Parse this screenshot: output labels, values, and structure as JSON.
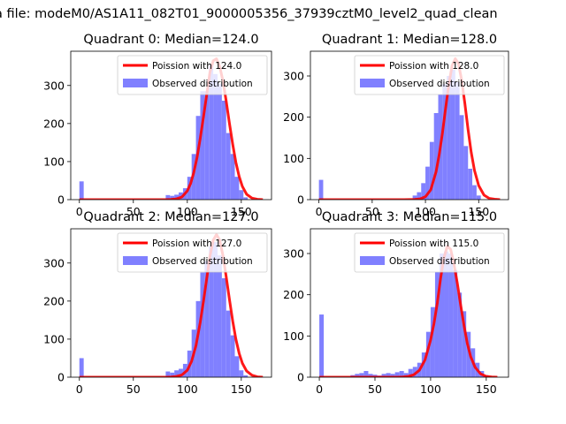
{
  "figure": {
    "title": "a file: modeM0/AS1A11_082T01_9000005356_37939cztM0_level2_quad_clean"
  },
  "colors": {
    "fit_line": "#ff0000",
    "histogram": "#8080ff",
    "axes": "#000000",
    "background": "#ffffff"
  },
  "chart_data": [
    {
      "type": "bar",
      "title": "Quadrant 0: Median=124.0",
      "xlim": [
        -8,
        178
      ],
      "ylim": [
        0,
        390
      ],
      "xticks": [
        0,
        50,
        100,
        150
      ],
      "yticks": [
        0,
        100,
        200,
        300
      ],
      "legend_position": "top-right",
      "grid": false,
      "series": [
        {
          "name": "Poission with 124.0",
          "type": "line",
          "x": [
            0,
            10,
            20,
            30,
            40,
            50,
            60,
            70,
            80,
            85,
            90,
            95,
            100,
            103,
            106,
            109,
            112,
            115,
            118,
            121,
            124,
            127,
            130,
            133,
            136,
            139,
            142,
            145,
            148,
            151,
            155,
            160,
            165,
            170
          ],
          "y": [
            0,
            0,
            0,
            0,
            0,
            0,
            0,
            0,
            0,
            0.5,
            2,
            7,
            23,
            42,
            71,
            111,
            162,
            218,
            277,
            335,
            365,
            370,
            350,
            312,
            260,
            201,
            146,
            98,
            61,
            35,
            14,
            4,
            1,
            0
          ]
        },
        {
          "name": "Observed distribution",
          "type": "hist",
          "bin_width": 4,
          "x": [
            0,
            4,
            8,
            12,
            16,
            20,
            24,
            28,
            32,
            36,
            40,
            44,
            48,
            52,
            56,
            60,
            64,
            68,
            72,
            76,
            80,
            84,
            88,
            92,
            96,
            100,
            104,
            108,
            112,
            116,
            120,
            124,
            128,
            132,
            136,
            140,
            144,
            148,
            152,
            156,
            160,
            164,
            168
          ],
          "y": [
            48,
            0,
            0,
            0,
            0,
            0,
            0,
            0,
            0,
            0,
            0,
            0,
            0,
            0,
            0,
            0,
            0,
            0,
            0,
            0,
            12,
            10,
            13,
            19,
            30,
            60,
            120,
            220,
            285,
            285,
            355,
            330,
            305,
            260,
            175,
            120,
            60,
            25,
            6,
            0,
            0,
            0,
            0
          ]
        }
      ]
    },
    {
      "type": "bar",
      "title": "Quadrant 1: Median=128.0",
      "xlim": [
        -8,
        178
      ],
      "ylim": [
        0,
        360
      ],
      "xticks": [
        0,
        50,
        100,
        150
      ],
      "yticks": [
        0,
        100,
        200,
        300
      ],
      "legend_position": "top-right",
      "grid": false,
      "series": [
        {
          "name": "Poission with 128.0",
          "type": "line",
          "x": [
            0,
            10,
            20,
            30,
            40,
            50,
            60,
            70,
            80,
            90,
            95,
            100,
            105,
            110,
            113,
            116,
            119,
            122,
            125,
            128,
            131,
            134,
            137,
            140,
            143,
            146,
            150,
            155,
            160,
            165,
            170
          ],
          "y": [
            0,
            0,
            0,
            0,
            0,
            0,
            0,
            0,
            0,
            0.5,
            2,
            7,
            24,
            68,
            110,
            162,
            222,
            281,
            325,
            342,
            330,
            290,
            234,
            171,
            115,
            71,
            34,
            11,
            3,
            1,
            0
          ]
        },
        {
          "name": "Observed distribution",
          "type": "hist",
          "bin_width": 4,
          "x": [
            0,
            4,
            8,
            12,
            16,
            20,
            24,
            28,
            32,
            36,
            40,
            44,
            48,
            52,
            56,
            60,
            64,
            68,
            72,
            76,
            80,
            84,
            88,
            92,
            96,
            100,
            104,
            108,
            112,
            116,
            120,
            124,
            128,
            132,
            136,
            140,
            144,
            148,
            152,
            156,
            160,
            164,
            168
          ],
          "y": [
            48,
            0,
            0,
            0,
            0,
            0,
            0,
            0,
            0,
            0,
            0,
            0,
            0,
            0,
            0,
            0,
            0,
            0,
            0,
            0,
            0,
            0,
            10,
            18,
            40,
            80,
            140,
            210,
            255,
            280,
            300,
            315,
            285,
            205,
            130,
            75,
            35,
            10,
            0,
            0,
            0,
            0,
            0
          ]
        }
      ]
    },
    {
      "type": "bar",
      "title": "Quadrant 2: Median=127.0",
      "xlim": [
        -8,
        178
      ],
      "ylim": [
        0,
        390
      ],
      "xticks": [
        0,
        50,
        100,
        150
      ],
      "yticks": [
        0,
        100,
        200,
        300
      ],
      "legend_position": "top-right",
      "grid": false,
      "series": [
        {
          "name": "Poission with 127.0",
          "type": "line",
          "x": [
            0,
            10,
            20,
            30,
            40,
            50,
            60,
            70,
            80,
            85,
            90,
            95,
            100,
            104,
            108,
            112,
            115,
            118,
            121,
            124,
            127,
            130,
            133,
            136,
            139,
            142,
            145,
            148,
            151,
            155,
            160,
            165,
            170
          ],
          "y": [
            0,
            0,
            0,
            0,
            0,
            0,
            0,
            0,
            0,
            0.5,
            2,
            6,
            18,
            42,
            83,
            145,
            200,
            260,
            318,
            360,
            375,
            360,
            320,
            265,
            205,
            148,
            100,
            63,
            37,
            16,
            5,
            1,
            0
          ]
        },
        {
          "name": "Observed distribution",
          "type": "hist",
          "bin_width": 4,
          "x": [
            0,
            4,
            8,
            12,
            16,
            20,
            24,
            28,
            32,
            36,
            40,
            44,
            48,
            52,
            56,
            60,
            64,
            68,
            72,
            76,
            80,
            84,
            88,
            92,
            96,
            100,
            104,
            108,
            112,
            116,
            120,
            124,
            128,
            132,
            136,
            140,
            144,
            148,
            152,
            156,
            160,
            164,
            168
          ],
          "y": [
            50,
            0,
            0,
            0,
            0,
            0,
            0,
            0,
            0,
            0,
            0,
            0,
            0,
            0,
            0,
            0,
            0,
            0,
            0,
            0,
            15,
            12,
            18,
            22,
            35,
            70,
            125,
            200,
            275,
            305,
            345,
            355,
            320,
            260,
            175,
            110,
            55,
            18,
            5,
            0,
            0,
            0,
            0
          ]
        }
      ]
    },
    {
      "type": "bar",
      "title": "Quadrant 3: Median=115.0",
      "xlim": [
        -8,
        170
      ],
      "ylim": [
        0,
        360
      ],
      "xticks": [
        0,
        50,
        100,
        150
      ],
      "yticks": [
        0,
        100,
        200,
        300
      ],
      "legend_position": "top-right",
      "grid": false,
      "series": [
        {
          "name": "Poission with 115.0",
          "type": "line",
          "x": [
            0,
            10,
            20,
            30,
            40,
            50,
            60,
            70,
            75,
            80,
            85,
            90,
            95,
            100,
            103,
            106,
            109,
            112,
            115,
            118,
            121,
            124,
            127,
            130,
            133,
            136,
            140,
            145,
            150,
            155,
            160
          ],
          "y": [
            0,
            0,
            0,
            0,
            0,
            0,
            0,
            0,
            0.5,
            2,
            6,
            17,
            42,
            90,
            130,
            180,
            240,
            290,
            318,
            310,
            275,
            228,
            175,
            125,
            82,
            50,
            24,
            8,
            2,
            0.5,
            0
          ]
        },
        {
          "name": "Observed distribution",
          "type": "hist",
          "bin_width": 4,
          "x": [
            0,
            4,
            8,
            12,
            16,
            20,
            24,
            28,
            32,
            36,
            40,
            44,
            48,
            52,
            56,
            60,
            64,
            68,
            72,
            76,
            80,
            84,
            88,
            92,
            96,
            100,
            104,
            108,
            112,
            116,
            120,
            124,
            128,
            132,
            136,
            140,
            144,
            148,
            152,
            156,
            160
          ],
          "y": [
            152,
            0,
            0,
            0,
            0,
            0,
            0,
            5,
            8,
            10,
            15,
            8,
            6,
            4,
            8,
            10,
            8,
            12,
            15,
            10,
            20,
            25,
            35,
            60,
            110,
            170,
            255,
            300,
            305,
            300,
            260,
            205,
            160,
            110,
            70,
            35,
            15,
            5,
            0,
            0,
            0
          ]
        }
      ]
    }
  ]
}
